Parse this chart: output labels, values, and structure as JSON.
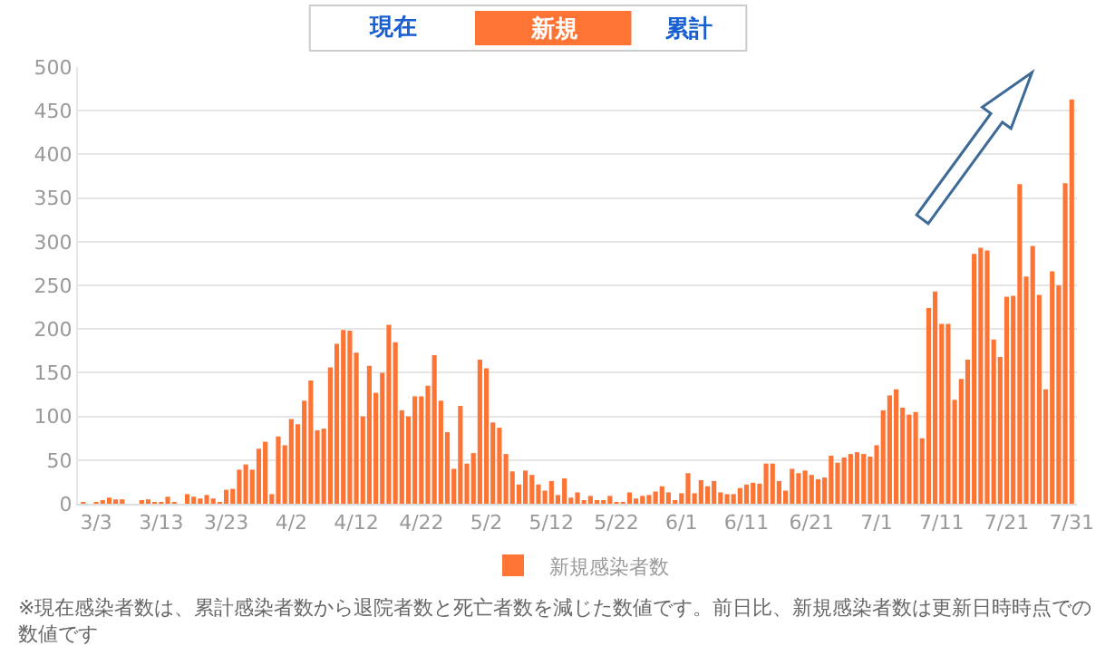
{
  "chart_data": {
    "type": "bar",
    "categories": [
      null,
      null,
      "3/3",
      null,
      null,
      null,
      null,
      null,
      null,
      null,
      null,
      null,
      "3/13",
      null,
      null,
      null,
      null,
      null,
      null,
      null,
      null,
      null,
      "3/23",
      null,
      null,
      null,
      null,
      null,
      null,
      null,
      null,
      null,
      "4/2",
      null,
      null,
      null,
      null,
      null,
      null,
      null,
      null,
      null,
      "4/12",
      null,
      null,
      null,
      null,
      null,
      null,
      null,
      null,
      null,
      "4/22",
      null,
      null,
      null,
      null,
      null,
      null,
      null,
      null,
      null,
      "5/2",
      null,
      null,
      null,
      null,
      null,
      null,
      null,
      null,
      null,
      "5/12",
      null,
      null,
      null,
      null,
      null,
      null,
      null,
      null,
      null,
      "5/22",
      null,
      null,
      null,
      null,
      null,
      null,
      null,
      null,
      null,
      "6/1",
      null,
      null,
      null,
      null,
      null,
      null,
      null,
      null,
      null,
      "6/11",
      null,
      null,
      null,
      null,
      null,
      null,
      null,
      null,
      null,
      "6/21",
      null,
      null,
      null,
      null,
      null,
      null,
      null,
      null,
      null,
      "7/1",
      null,
      null,
      null,
      null,
      null,
      null,
      null,
      null,
      null,
      "7/11",
      null,
      null,
      null,
      null,
      null,
      null,
      null,
      null,
      null,
      "7/21",
      null,
      null,
      null,
      null,
      null,
      null,
      null,
      null,
      null,
      "7/31"
    ],
    "series": [
      {
        "name": "新規感染者数",
        "color": "#fe7434",
        "values": [
          1,
          0,
          1,
          3,
          7,
          5,
          5,
          0,
          0,
          3,
          5,
          2,
          2,
          8,
          2,
          0,
          11,
          8,
          6,
          10,
          6,
          2,
          16,
          17,
          39,
          45,
          39,
          63,
          71,
          11,
          77,
          67,
          97,
          91,
          118,
          141,
          84,
          86,
          156,
          183,
          199,
          198,
          173,
          100,
          158,
          127,
          150,
          205,
          185,
          107,
          100,
          123,
          123,
          135,
          170,
          118,
          82,
          40,
          112,
          46,
          58,
          165,
          155,
          93,
          87,
          57,
          37,
          22,
          38,
          33,
          22,
          15,
          26,
          10,
          29,
          7,
          13,
          4,
          9,
          3,
          3,
          9,
          2,
          1,
          13,
          6,
          9,
          10,
          14,
          20,
          13,
          4,
          12,
          35,
          12,
          27,
          20,
          26,
          13,
          11,
          11,
          18,
          22,
          24,
          23,
          46,
          46,
          26,
          15,
          40,
          35,
          38,
          33,
          28,
          30,
          55,
          47,
          53,
          57,
          59,
          57,
          54,
          67,
          107,
          124,
          131,
          110,
          102,
          105,
          75,
          224,
          243,
          206,
          206,
          119,
          143,
          165,
          286,
          293,
          290,
          188,
          168,
          237,
          238,
          366,
          260,
          295,
          239,
          131,
          266,
          250,
          367,
          463
        ]
      }
    ],
    "ylim": [
      0,
      500
    ],
    "yticks": [
      0,
      50,
      100,
      150,
      200,
      250,
      300,
      350,
      400,
      450,
      500
    ],
    "grid": "y",
    "legend": "bottom",
    "annotations": [
      "現在",
      "新規",
      "累計",
      "※現在感染者数は、累計感染者数から退院者数と死亡者数を減じた数値です。前日比、新規感染者数は更新日時時点での数値です"
    ]
  }
}
